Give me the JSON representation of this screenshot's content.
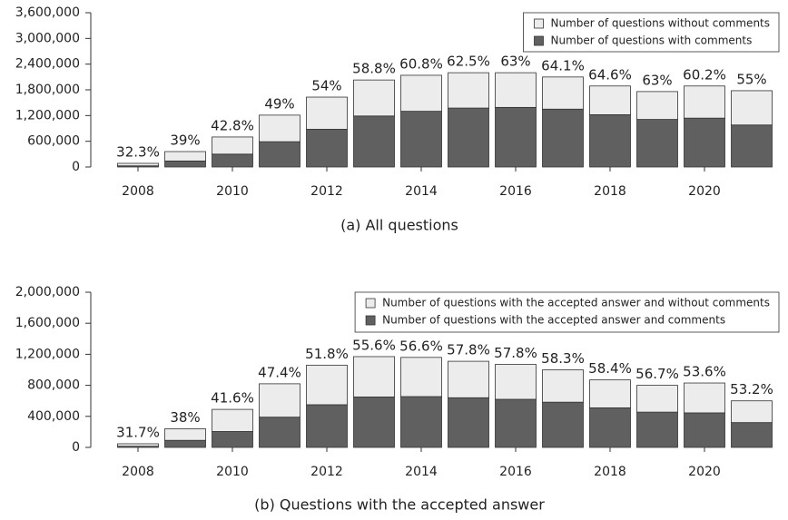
{
  "chart_data": [
    {
      "type": "stacked_bar",
      "caption": "(a) All questions",
      "categories": [
        "2008",
        null,
        "2010",
        null,
        "2012",
        null,
        "2014",
        null,
        "2016",
        null,
        "2018",
        null,
        "2020",
        null
      ],
      "series": [
        {
          "name": "Number of questions with comments",
          "color": "#606060",
          "values": [
            27000,
            140000,
            300000,
            590000,
            880000,
            1190000,
            1300000,
            1375000,
            1390000,
            1350000,
            1220000,
            1110000,
            1140000,
            980000
          ]
        },
        {
          "name": "Number of questions without comments",
          "color": "#ececec",
          "values": [
            58000,
            220000,
            400000,
            620000,
            750000,
            840000,
            840000,
            825000,
            810000,
            750000,
            670000,
            650000,
            750000,
            800000
          ]
        }
      ],
      "bar_labels": [
        "32.3%",
        "39%",
        "42.8%",
        "49%",
        "54%",
        "58.8%",
        "60.8%",
        "62.5%",
        "63%",
        "64.1%",
        "64.6%",
        "63%",
        "60.2%",
        "55%"
      ],
      "ylim": [
        0,
        3600000
      ],
      "yticks": [
        0,
        {
          "value": 600000,
          "label": "600,000"
        },
        {
          "value": 1200000,
          "label": "1,200,000"
        },
        {
          "value": 1800000,
          "label": "1,800,000"
        },
        {
          "value": 2400000,
          "label": "2,400,000"
        },
        {
          "value": 3000000,
          "label": "3,000,000"
        },
        {
          "value": 3600000,
          "label": "3,600,000"
        }
      ],
      "legend": "top-right"
    },
    {
      "type": "stacked_bar",
      "caption": "(b) Questions with the accepted answer",
      "categories": [
        "2008",
        null,
        "2010",
        null,
        "2012",
        null,
        "2014",
        null,
        "2016",
        null,
        "2018",
        null,
        "2020",
        null
      ],
      "series": [
        {
          "name": "Number of questions with the accepted answer and comments",
          "color": "#606060",
          "values": [
            15000,
            91000,
            205000,
            390000,
            550000,
            650000,
            655000,
            640000,
            620000,
            583000,
            510000,
            455000,
            445000,
            320000
          ]
        },
        {
          "name": "Number of questions with the accepted answer and without comments",
          "color": "#ececec",
          "values": [
            32000,
            149000,
            285000,
            430000,
            510000,
            520000,
            505000,
            470000,
            450000,
            417000,
            360000,
            345000,
            385000,
            280000
          ]
        }
      ],
      "bar_labels": [
        "31.7%",
        "38%",
        "41.6%",
        "47.4%",
        "51.8%",
        "55.6%",
        "56.6%",
        "57.8%",
        "57.8%",
        "58.3%",
        "58.4%",
        "56.7%",
        "53.6%",
        "53.2%"
      ],
      "ylim": [
        0,
        2000000
      ],
      "yticks": [
        0,
        {
          "value": 400000,
          "label": "400,000"
        },
        {
          "value": 800000,
          "label": "800,000"
        },
        {
          "value": 1200000,
          "label": "1,200,000"
        },
        {
          "value": 1600000,
          "label": "1,600,000"
        },
        {
          "value": 2000000,
          "label": "2,000,000"
        }
      ],
      "legend": "top-right"
    }
  ]
}
